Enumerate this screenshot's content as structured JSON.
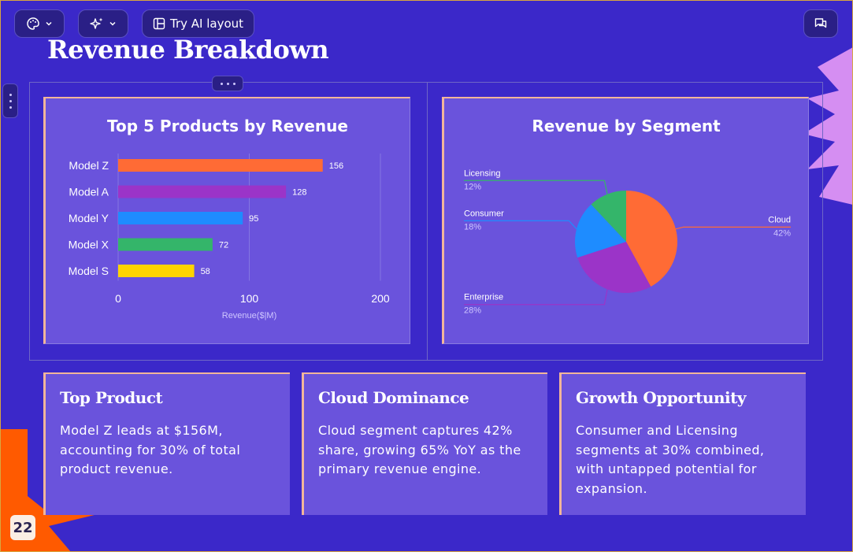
{
  "toolbar": {
    "layout_label": "Try AI layout"
  },
  "title": "Revenue Breakdown",
  "chart_data": [
    {
      "type": "bar",
      "orientation": "horizontal",
      "title": "Top 5 Products by Revenue",
      "categories": [
        "Model Z",
        "Model A",
        "Model Y",
        "Model X",
        "Model S"
      ],
      "values": [
        156,
        128,
        95,
        72,
        58
      ],
      "colors": [
        "#ff6b35",
        "#9b34c8",
        "#1e8cff",
        "#34b56a",
        "#ffd400"
      ],
      "xlabel": "Revenue($|M)",
      "ylabel": "",
      "xlim": [
        0,
        200
      ],
      "xticks": [
        "0",
        "100",
        "200"
      ],
      "grid": true
    },
    {
      "type": "pie",
      "title": "Revenue by Segment",
      "labels": [
        "Cloud",
        "Enterprise",
        "Consumer",
        "Licensing"
      ],
      "values": [
        42,
        28,
        18,
        12
      ],
      "value_labels": [
        "42%",
        "28%",
        "18%",
        "12%"
      ],
      "colors": [
        "#ff6b35",
        "#9b34c8",
        "#1e8cff",
        "#34b56a"
      ]
    }
  ],
  "cards": [
    {
      "title": "Top Product",
      "body": "Model Z leads at $156M, accounting for 30% of total product revenue."
    },
    {
      "title": "Cloud Dominance",
      "body": "Cloud segment captures 42% share, growing 65% YoY as the primary revenue engine."
    },
    {
      "title": "Growth Opportunity",
      "body": "Consumer and Licensing segments at 30% combined, with untapped potential for expansion."
    }
  ],
  "page_number": "22",
  "colors": {
    "background": "#3b28c9",
    "card": "#6a53dc",
    "accent_border": "#f2b59a",
    "burst_orange": "#ff5a00",
    "burst_pink": "#d58ef2"
  }
}
